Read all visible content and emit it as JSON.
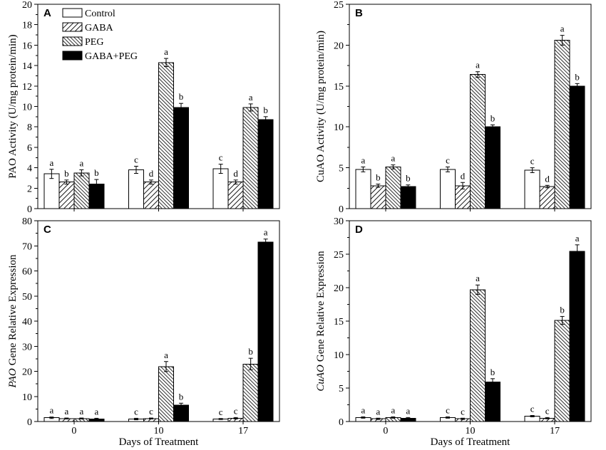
{
  "chart_data": [
    {
      "panel": "A",
      "type": "bar",
      "ylabel": {
        "text": "PAO Activity (U/mg protein/min)"
      },
      "ylim": [
        0,
        20
      ],
      "yticks": [
        0,
        2,
        4,
        6,
        8,
        10,
        12,
        14,
        16,
        18,
        20
      ],
      "legend": [
        {
          "name": "Control",
          "fill": "#ffffff"
        },
        {
          "name": "GABA",
          "fill": "#ffffff"
        },
        {
          "name": "PEG",
          "fill": "#ffffff"
        },
        {
          "name": "GABA+PEG",
          "fill": "#000000"
        }
      ],
      "series": [
        {
          "values": [
            3.4,
            3.8,
            3.9
          ],
          "errors": [
            0.45,
            0.35,
            0.45
          ],
          "letters": [
            "a",
            "c",
            "c"
          ]
        },
        {
          "values": [
            2.6,
            2.6,
            2.6
          ],
          "errors": [
            0.2,
            0.2,
            0.2
          ],
          "letters": [
            "b",
            "d",
            "d"
          ]
        },
        {
          "values": [
            3.5,
            14.3,
            9.9
          ],
          "errors": [
            0.3,
            0.4,
            0.35
          ],
          "letters": [
            "a",
            "a",
            "a"
          ]
        },
        {
          "values": [
            2.4,
            9.9,
            8.7
          ],
          "errors": [
            0.45,
            0.4,
            0.3
          ],
          "letters": [
            "b",
            "b",
            "b"
          ]
        }
      ]
    },
    {
      "panel": "B",
      "type": "bar",
      "ylabel": {
        "text": "CuAO Activity (U/mg protein/min)"
      },
      "ylim": [
        0,
        25
      ],
      "yticks": [
        0,
        5,
        10,
        15,
        20,
        25
      ],
      "series": [
        {
          "values": [
            4.8,
            4.8,
            4.7
          ],
          "errors": [
            0.3,
            0.3,
            0.3
          ],
          "letters": [
            "a",
            "c",
            "c"
          ]
        },
        {
          "values": [
            2.8,
            2.8,
            2.7
          ],
          "errors": [
            0.2,
            0.4,
            0.15
          ],
          "letters": [
            "b",
            "d",
            "d"
          ]
        },
        {
          "values": [
            5.1,
            16.4,
            20.6
          ],
          "errors": [
            0.25,
            0.35,
            0.6
          ],
          "letters": [
            "a",
            "a",
            "a"
          ]
        },
        {
          "values": [
            2.7,
            10.0,
            15.0
          ],
          "errors": [
            0.2,
            0.25,
            0.3
          ],
          "letters": [
            "b",
            "b",
            "b"
          ]
        }
      ]
    },
    {
      "panel": "C",
      "type": "bar",
      "ylabel": {
        "italic": "PAO",
        "text": "Gene Relative Expression"
      },
      "xlabel": "Days of Treatment",
      "categories": [
        "0",
        "10",
        "17"
      ],
      "ylim": [
        0,
        80
      ],
      "yticks": [
        0,
        10,
        20,
        30,
        40,
        50,
        60,
        70,
        80
      ],
      "series": [
        {
          "values": [
            1.5,
            1.0,
            1.0
          ],
          "errors": [
            0.3,
            0.3,
            0.2
          ],
          "letters": [
            "a",
            "c",
            "c"
          ]
        },
        {
          "values": [
            1.2,
            1.2,
            1.3
          ],
          "errors": [
            0.2,
            0.2,
            0.3
          ],
          "letters": [
            "a",
            "c",
            "c"
          ]
        },
        {
          "values": [
            1.2,
            21.9,
            22.9
          ],
          "errors": [
            0.2,
            2.0,
            2.3
          ],
          "letters": [
            "a",
            "a",
            "b"
          ]
        },
        {
          "values": [
            1.0,
            6.5,
            71.5
          ],
          "errors": [
            0.3,
            0.8,
            1.2
          ],
          "letters": [
            "a",
            "b",
            "a"
          ]
        }
      ]
    },
    {
      "panel": "D",
      "type": "bar",
      "ylabel": {
        "italic": "CuAO",
        "text": "Gene Relative Expression"
      },
      "xlabel": "Days of Treatment",
      "categories": [
        "0",
        "10",
        "17"
      ],
      "ylim": [
        0,
        30
      ],
      "yticks": [
        0,
        5,
        10,
        15,
        20,
        25,
        30
      ],
      "series": [
        {
          "values": [
            0.6,
            0.6,
            0.8
          ],
          "errors": [
            0.1,
            0.1,
            0.1
          ],
          "letters": [
            "a",
            "c",
            "c"
          ]
        },
        {
          "values": [
            0.4,
            0.4,
            0.5
          ],
          "errors": [
            0.1,
            0.1,
            0.1
          ],
          "letters": [
            "a",
            "c",
            "c"
          ]
        },
        {
          "values": [
            0.6,
            19.7,
            15.1
          ],
          "errors": [
            0.1,
            0.7,
            0.6
          ],
          "letters": [
            "a",
            "a",
            "b"
          ]
        },
        {
          "values": [
            0.5,
            5.9,
            25.4
          ],
          "errors": [
            0.1,
            0.5,
            1.0
          ],
          "letters": [
            "a",
            "b",
            "a"
          ]
        }
      ]
    }
  ]
}
